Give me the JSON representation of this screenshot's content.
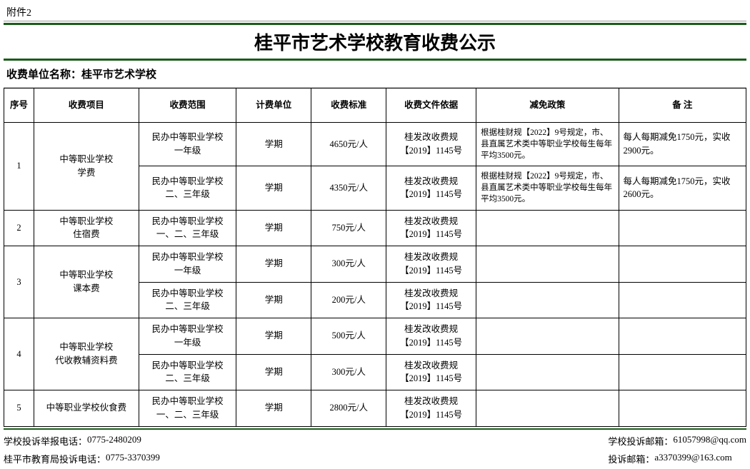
{
  "attachment_label": "附件2",
  "title": "桂平市艺术学校教育收费公示",
  "unit_prefix": "收费单位名称：",
  "unit_name": "桂平市艺术学校",
  "columns": [
    "序号",
    "收费项目",
    "收费范围",
    "计费单位",
    "收费标准",
    "收费文件依据",
    "减免政策",
    "备 注"
  ],
  "groups": [
    {
      "no": "1",
      "item": "中等职业学校\n学费",
      "rows": [
        {
          "scope": "民办中等职业学校\n一年级",
          "unit": "学期",
          "standard": "4650元/人",
          "basis": "桂发改收费规\n【2019】1145号",
          "policy": "根据桂财规【2022】9号规定，市、县直属艺术类中等职业学校每生每年平均3500元。",
          "remark": "每人每期减免1750元，实收2900元。"
        },
        {
          "scope": "民办中等职业学校\n二、三年级",
          "unit": "学期",
          "standard": "4350元/人",
          "basis": "桂发改收费规\n【2019】1145号",
          "policy": "根据桂财规【2022】9号规定，市、县直属艺术类中等职业学校每生每年平均3500元。",
          "remark": "每人每期减免1750元，实收2600元。"
        }
      ]
    },
    {
      "no": "2",
      "item": "中等职业学校\n住宿费",
      "rows": [
        {
          "scope": "民办中等职业学校\n一、二、三年级",
          "unit": "学期",
          "standard": "750元/人",
          "basis": "桂发改收费规\n【2019】1145号",
          "policy": "",
          "remark": ""
        }
      ]
    },
    {
      "no": "3",
      "item": "中等职业学校\n课本费",
      "rows": [
        {
          "scope": "民办中等职业学校\n一年级",
          "unit": "学期",
          "standard": "300元/人",
          "basis": "桂发改收费规\n【2019】1145号",
          "policy": "",
          "remark": ""
        },
        {
          "scope": "民办中等职业学校\n二、三年级",
          "unit": "学期",
          "standard": "200元/人",
          "basis": "桂发改收费规\n【2019】1145号",
          "policy": "",
          "remark": ""
        }
      ]
    },
    {
      "no": "4",
      "item": "中等职业学校\n代收教辅资料费",
      "rows": [
        {
          "scope": "民办中等职业学校\n一年级",
          "unit": "学期",
          "standard": "500元/人",
          "basis": "桂发改收费规\n【2019】1145号",
          "policy": "",
          "remark": ""
        },
        {
          "scope": "民办中等职业学校\n二、三年级",
          "unit": "学期",
          "standard": "300元/人",
          "basis": "桂发改收费规\n【2019】1145号",
          "policy": "",
          "remark": ""
        }
      ]
    },
    {
      "no": "5",
      "item": "中等职业学校伙食费",
      "rows": [
        {
          "scope": "民办中等职业学校\n一、二、三年级",
          "unit": "学期",
          "standard": "2800元/人",
          "basis": "桂发改收费规\n【2019】1145号",
          "policy": "",
          "remark": ""
        }
      ]
    }
  ],
  "footer": {
    "left": [
      {
        "label": "学校投诉举报电话：",
        "value": "0775-2480209"
      },
      {
        "label": "桂平市教育局投诉电话：",
        "value": "0775-3370399"
      }
    ],
    "right": [
      {
        "label": "学校投诉邮箱：",
        "value": "61057998@qq.com"
      },
      {
        "label": "投诉邮箱：",
        "value": "a3370399@163.com"
      }
    ]
  },
  "style": {
    "accent_color": "#1a5c1a",
    "border_color": "#000000",
    "background": "#ffffff"
  }
}
